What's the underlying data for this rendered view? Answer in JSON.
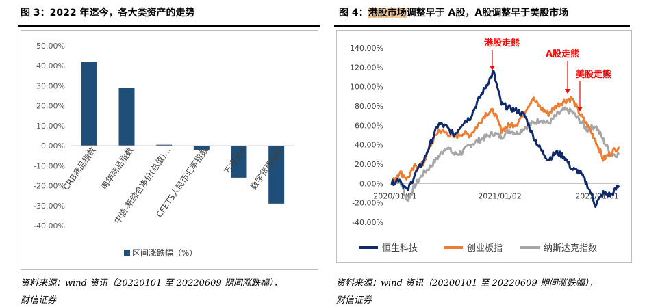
{
  "left": {
    "title": "图 3：2022 年迄今，各大类资产的走势",
    "source_line1": "资料来源：wind 资讯（20220101 至 20220609 期间涨跌幅），",
    "source_line2": "财信证券"
  },
  "right": {
    "title_prefix": "图 4：",
    "title_highlight": "港股市场",
    "title_suffix": "调整早于 A股，A股调整早于美股市场",
    "source_line1": "资料来源：wind 资讯（20200101 至 20220609 期间涨跌幅），",
    "source_line2": "财信证券"
  },
  "colors": {
    "bar": "#1f4e79",
    "hang_seng_tech": "#0f2a6b",
    "chinext": "#ed7d31",
    "nasdaq": "#a6a6a6",
    "annotation": "#ff0000"
  },
  "chart_data": [
    {
      "type": "bar",
      "categories": [
        "CRB商品指数",
        "南华商品指数",
        "中债-新综合净价(总值)...",
        "CFETS人民币汇率指数",
        "万得全A",
        "数字货币指数"
      ],
      "values": [
        42.0,
        29.0,
        0.5,
        -2.0,
        -16.0,
        -29.0
      ],
      "ylim": [
        -40,
        50
      ],
      "yticks": [
        "-40.00%",
        "-30.00%",
        "-20.00%",
        "-10.00%",
        "0.00%",
        "10.00%",
        "20.00%",
        "30.00%",
        "40.00%",
        "50.00%"
      ],
      "legend": "区间涨跌幅（%）",
      "legend_position": "bottom"
    },
    {
      "type": "line",
      "ylim": [
        -40,
        140
      ],
      "yticks": [
        "-40.00%",
        "-20.00%",
        "0.00%",
        "20.00%",
        "40.00%",
        "60.00%",
        "80.00%",
        "100.00%",
        "120.00%",
        "140.00%"
      ],
      "xticks": [
        "2020/01/01",
        "2021/01/02",
        "2022/01/01"
      ],
      "legend_position": "bottom",
      "annotations": [
        "港股走熊",
        "A股走熊",
        "美股走熊"
      ],
      "series": [
        {
          "name": "恒生科技",
          "x": [
            "2020/01",
            "2020/02",
            "2020/03",
            "2020/04",
            "2020/05",
            "2020/06",
            "2020/07",
            "2020/08",
            "2020/09",
            "2020/10",
            "2020/11",
            "2020/12",
            "2021/01",
            "2021/02",
            "2021/03",
            "2021/04",
            "2021/05",
            "2021/06",
            "2021/07",
            "2021/08",
            "2021/09",
            "2021/10",
            "2021/11",
            "2021/12",
            "2022/01",
            "2022/02",
            "2022/03",
            "2022/04",
            "2022/05",
            "2022/06"
          ],
          "values": [
            0,
            5,
            -8,
            10,
            22,
            42,
            62,
            58,
            50,
            62,
            68,
            85,
            100,
            115,
            82,
            78,
            75,
            70,
            50,
            35,
            25,
            32,
            28,
            15,
            12,
            -2,
            -22,
            -10,
            -12,
            -2
          ]
        },
        {
          "name": "创业板指",
          "x": [
            "2020/01",
            "2020/02",
            "2020/03",
            "2020/04",
            "2020/05",
            "2020/06",
            "2020/07",
            "2020/08",
            "2020/09",
            "2020/10",
            "2020/11",
            "2020/12",
            "2021/01",
            "2021/02",
            "2021/03",
            "2021/04",
            "2021/05",
            "2021/06",
            "2021/07",
            "2021/08",
            "2021/09",
            "2021/10",
            "2021/11",
            "2021/12",
            "2022/01",
            "2022/02",
            "2022/03",
            "2022/04",
            "2022/05",
            "2022/06"
          ],
          "values": [
            0,
            12,
            5,
            18,
            20,
            40,
            55,
            52,
            48,
            52,
            50,
            60,
            72,
            75,
            55,
            60,
            62,
            75,
            88,
            78,
            72,
            80,
            85,
            88,
            72,
            60,
            45,
            25,
            32,
            38
          ]
        },
        {
          "name": "纳斯达克指数",
          "x": [
            "2020/01",
            "2020/02",
            "2020/03",
            "2020/04",
            "2020/05",
            "2020/06",
            "2020/07",
            "2020/08",
            "2020/09",
            "2020/10",
            "2020/11",
            "2020/12",
            "2021/01",
            "2021/02",
            "2021/03",
            "2021/04",
            "2021/05",
            "2021/06",
            "2021/07",
            "2021/08",
            "2021/09",
            "2021/10",
            "2021/11",
            "2021/12",
            "2022/01",
            "2022/02",
            "2022/03",
            "2022/04",
            "2022/05",
            "2022/06"
          ],
          "values": [
            0,
            4,
            -18,
            -2,
            10,
            18,
            28,
            38,
            30,
            32,
            40,
            44,
            48,
            52,
            48,
            55,
            52,
            58,
            62,
            66,
            62,
            70,
            76,
            74,
            65,
            55,
            60,
            45,
            30,
            30
          ]
        }
      ]
    }
  ]
}
